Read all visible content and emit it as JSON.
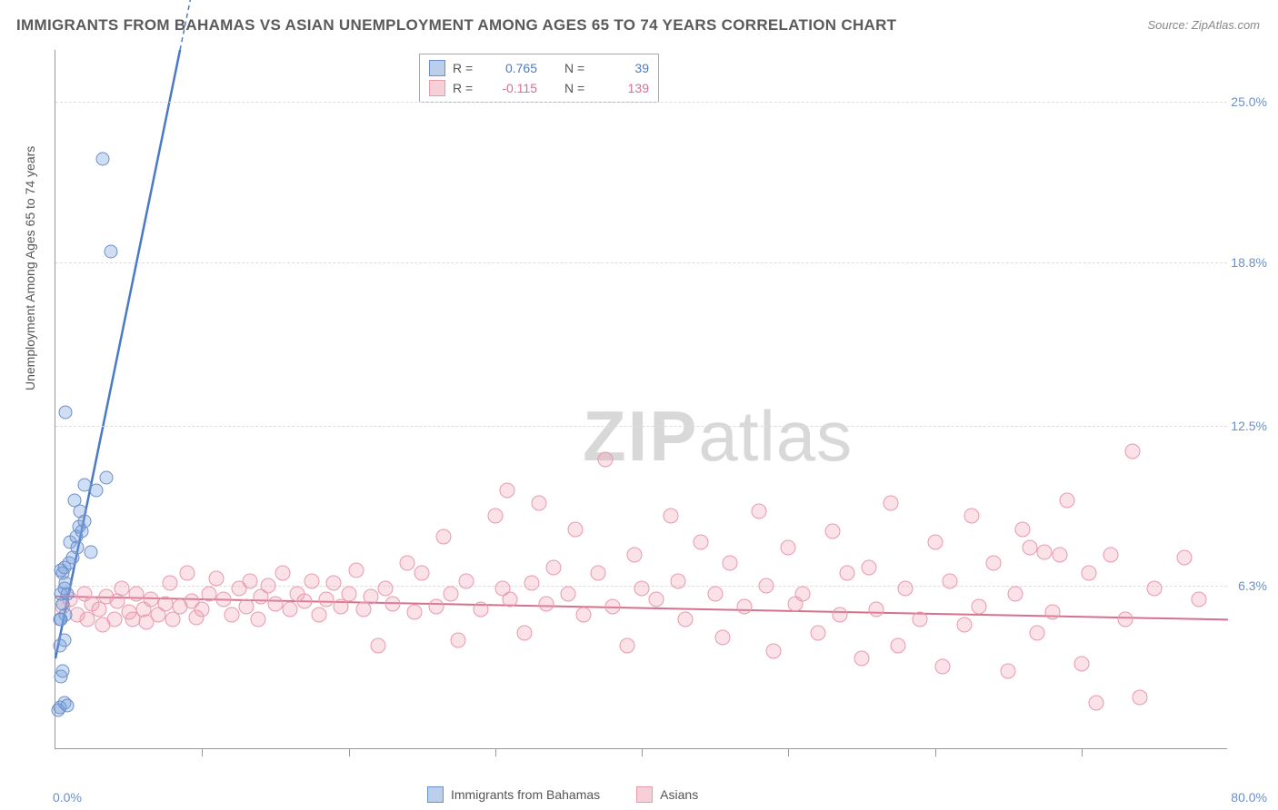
{
  "title": "IMMIGRANTS FROM BAHAMAS VS ASIAN UNEMPLOYMENT AMONG AGES 65 TO 74 YEARS CORRELATION CHART",
  "source": "Source: ZipAtlas.com",
  "y_axis_label": "Unemployment Among Ages 65 to 74 years",
  "watermark_zip": "ZIP",
  "watermark_atlas": "atlas",
  "chart": {
    "type": "scatter",
    "xlim": [
      0,
      80
    ],
    "ylim": [
      0,
      27
    ],
    "y_ticks": [
      {
        "v": 6.3,
        "label": "6.3%"
      },
      {
        "v": 12.5,
        "label": "12.5%"
      },
      {
        "v": 18.8,
        "label": "18.8%"
      },
      {
        "v": 25.0,
        "label": "25.0%"
      }
    ],
    "x_origin_label": "0.0%",
    "x_max_label": "80.0%",
    "x_ticks_pos": [
      10,
      20,
      30,
      40,
      50,
      60,
      70
    ],
    "grid_color": "#dddddd",
    "background_color": "#ffffff",
    "axis_color": "#999999"
  },
  "series": {
    "blue": {
      "label": "Immigrants from Bahamas",
      "color_fill": "rgba(120,160,220,0.35)",
      "color_stroke": "#6a8fc9",
      "marker_radius": 7.5,
      "R": "0.765",
      "N": "39",
      "trend": {
        "x1": 0,
        "y1": 3.5,
        "x2": 8.5,
        "y2": 27,
        "color": "#4a7ac7",
        "width": 2.5,
        "dash_ext": true
      },
      "points": [
        [
          0.2,
          1.5
        ],
        [
          0.3,
          1.6
        ],
        [
          0.6,
          1.8
        ],
        [
          0.8,
          1.7
        ],
        [
          0.4,
          2.8
        ],
        [
          0.5,
          3.0
        ],
        [
          0.3,
          4.0
        ],
        [
          0.6,
          4.2
        ],
        [
          0.4,
          5.0
        ],
        [
          0.7,
          5.2
        ],
        [
          0.5,
          5.6
        ],
        [
          0.3,
          5.0
        ],
        [
          0.4,
          6.0
        ],
        [
          0.6,
          6.2
        ],
        [
          0.8,
          6.0
        ],
        [
          0.7,
          6.4
        ],
        [
          0.5,
          6.8
        ],
        [
          0.4,
          6.9
        ],
        [
          0.6,
          7.0
        ],
        [
          0.9,
          7.2
        ],
        [
          1.2,
          7.4
        ],
        [
          1.0,
          8.0
        ],
        [
          1.4,
          8.2
        ],
        [
          1.6,
          8.6
        ],
        [
          1.5,
          7.8
        ],
        [
          1.8,
          8.4
        ],
        [
          1.3,
          9.6
        ],
        [
          1.7,
          9.2
        ],
        [
          2.0,
          8.8
        ],
        [
          2.4,
          7.6
        ],
        [
          0.7,
          13.0
        ],
        [
          3.5,
          10.5
        ],
        [
          2.8,
          10.0
        ],
        [
          2.0,
          10.2
        ],
        [
          3.8,
          19.2
        ],
        [
          3.2,
          22.8
        ]
      ]
    },
    "pink": {
      "label": "Asians",
      "color_fill": "rgba(240,160,180,0.3)",
      "color_stroke": "#e89aae",
      "marker_radius": 8.5,
      "R": "-0.115",
      "N": "139",
      "trend": {
        "x1": 0,
        "y1": 5.9,
        "x2": 80,
        "y2": 5.0,
        "color": "#d6708c",
        "width": 2,
        "dash_ext": false
      },
      "points": [
        [
          0.5,
          5.5
        ],
        [
          1.0,
          5.8
        ],
        [
          1.5,
          5.2
        ],
        [
          2.0,
          6.0
        ],
        [
          2.2,
          5.0
        ],
        [
          2.5,
          5.6
        ],
        [
          3.0,
          5.4
        ],
        [
          3.2,
          4.8
        ],
        [
          3.5,
          5.9
        ],
        [
          4.0,
          5.0
        ],
        [
          4.2,
          5.7
        ],
        [
          4.5,
          6.2
        ],
        [
          5.0,
          5.3
        ],
        [
          5.3,
          5.0
        ],
        [
          5.5,
          6.0
        ],
        [
          6.0,
          5.4
        ],
        [
          6.2,
          4.9
        ],
        [
          6.5,
          5.8
        ],
        [
          7.0,
          5.2
        ],
        [
          7.5,
          5.6
        ],
        [
          7.8,
          6.4
        ],
        [
          8.0,
          5.0
        ],
        [
          8.5,
          5.5
        ],
        [
          9.0,
          6.8
        ],
        [
          9.3,
          5.7
        ],
        [
          9.6,
          5.1
        ],
        [
          10.0,
          5.4
        ],
        [
          10.5,
          6.0
        ],
        [
          11.0,
          6.6
        ],
        [
          11.5,
          5.8
        ],
        [
          12.0,
          5.2
        ],
        [
          12.5,
          6.2
        ],
        [
          13.0,
          5.5
        ],
        [
          13.3,
          6.5
        ],
        [
          13.8,
          5.0
        ],
        [
          14.0,
          5.9
        ],
        [
          14.5,
          6.3
        ],
        [
          15.0,
          5.6
        ],
        [
          15.5,
          6.8
        ],
        [
          16.0,
          5.4
        ],
        [
          16.5,
          6.0
        ],
        [
          17.0,
          5.7
        ],
        [
          17.5,
          6.5
        ],
        [
          18.0,
          5.2
        ],
        [
          18.5,
          5.8
        ],
        [
          19.0,
          6.4
        ],
        [
          19.5,
          5.5
        ],
        [
          20.0,
          6.0
        ],
        [
          20.5,
          6.9
        ],
        [
          21.0,
          5.4
        ],
        [
          21.5,
          5.9
        ],
        [
          22.0,
          4.0
        ],
        [
          22.5,
          6.2
        ],
        [
          23.0,
          5.6
        ],
        [
          24.0,
          7.2
        ],
        [
          24.5,
          5.3
        ],
        [
          25.0,
          6.8
        ],
        [
          26.0,
          5.5
        ],
        [
          26.5,
          8.2
        ],
        [
          27.0,
          6.0
        ],
        [
          27.5,
          4.2
        ],
        [
          28.0,
          6.5
        ],
        [
          29.0,
          5.4
        ],
        [
          30.0,
          9.0
        ],
        [
          30.5,
          6.2
        ],
        [
          30.8,
          10.0
        ],
        [
          31.0,
          5.8
        ],
        [
          32.0,
          4.5
        ],
        [
          32.5,
          6.4
        ],
        [
          33.0,
          9.5
        ],
        [
          33.5,
          5.6
        ],
        [
          34.0,
          7.0
        ],
        [
          35.0,
          6.0
        ],
        [
          35.5,
          8.5
        ],
        [
          36.0,
          5.2
        ],
        [
          37.0,
          6.8
        ],
        [
          37.5,
          11.2
        ],
        [
          38.0,
          5.5
        ],
        [
          39.0,
          4.0
        ],
        [
          39.5,
          7.5
        ],
        [
          40.0,
          6.2
        ],
        [
          41.0,
          5.8
        ],
        [
          42.0,
          9.0
        ],
        [
          42.5,
          6.5
        ],
        [
          43.0,
          5.0
        ],
        [
          44.0,
          8.0
        ],
        [
          45.0,
          6.0
        ],
        [
          45.5,
          4.3
        ],
        [
          46.0,
          7.2
        ],
        [
          47.0,
          5.5
        ],
        [
          48.0,
          9.2
        ],
        [
          48.5,
          6.3
        ],
        [
          49.0,
          3.8
        ],
        [
          50.0,
          7.8
        ],
        [
          50.5,
          5.6
        ],
        [
          51.0,
          6.0
        ],
        [
          52.0,
          4.5
        ],
        [
          53.0,
          8.4
        ],
        [
          53.5,
          5.2
        ],
        [
          54.0,
          6.8
        ],
        [
          55.0,
          3.5
        ],
        [
          55.5,
          7.0
        ],
        [
          56.0,
          5.4
        ],
        [
          57.0,
          9.5
        ],
        [
          57.5,
          4.0
        ],
        [
          58.0,
          6.2
        ],
        [
          59.0,
          5.0
        ],
        [
          60.0,
          8.0
        ],
        [
          60.5,
          3.2
        ],
        [
          61.0,
          6.5
        ],
        [
          62.0,
          4.8
        ],
        [
          62.5,
          9.0
        ],
        [
          63.0,
          5.5
        ],
        [
          64.0,
          7.2
        ],
        [
          65.0,
          3.0
        ],
        [
          65.5,
          6.0
        ],
        [
          66.0,
          8.5
        ],
        [
          66.5,
          7.8
        ],
        [
          67.0,
          4.5
        ],
        [
          67.5,
          7.6
        ],
        [
          68.0,
          5.3
        ],
        [
          68.5,
          7.5
        ],
        [
          69.0,
          9.6
        ],
        [
          70.0,
          3.3
        ],
        [
          70.5,
          6.8
        ],
        [
          71.0,
          1.8
        ],
        [
          72.0,
          7.5
        ],
        [
          73.0,
          5.0
        ],
        [
          73.5,
          11.5
        ],
        [
          74.0,
          2.0
        ],
        [
          75.0,
          6.2
        ],
        [
          77.0,
          7.4
        ],
        [
          78.0,
          5.8
        ]
      ]
    }
  },
  "legend_labels": {
    "R": "R =",
    "N": "N ="
  }
}
